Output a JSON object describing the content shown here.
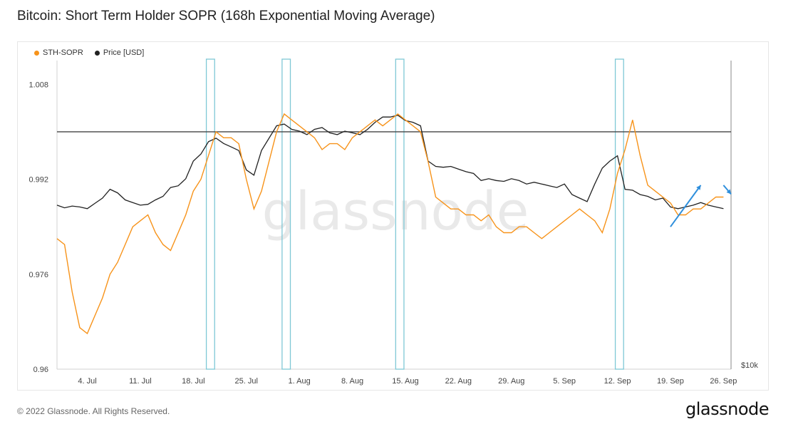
{
  "title": "Bitcoin: Short Term Holder SOPR (168h Exponential Moving Average)",
  "footer": "© 2022 Glassnode. All Rights Reserved.",
  "brand": "glassnode",
  "watermark": "glassnode",
  "colors": {
    "sopr": "#f7931a",
    "price": "#222222",
    "highlight": "#7fc8d6",
    "arrow": "#2f8fdc",
    "baseline": "#444444"
  },
  "chart_data": {
    "type": "line",
    "title": "Bitcoin: Short Term Holder SOPR (168h Exponential Moving Average)",
    "legend": [
      "STH-SOPR",
      "Price [USD]"
    ],
    "legend_position": "top-left",
    "y_ticks": [
      "1.008",
      "0.992",
      "0.976",
      "0.96"
    ],
    "ylim": [
      0.96,
      1.012
    ],
    "y_right_tick": "$10k",
    "x_ticks": [
      "4. Jul",
      "11. Jul",
      "18. Jul",
      "25. Jul",
      "1. Aug",
      "8. Aug",
      "15. Aug",
      "22. Aug",
      "29. Aug",
      "5. Sep",
      "12. Sep",
      "19. Sep",
      "26. Sep"
    ],
    "xlim": [
      "2022-06-30",
      "2022-09-27"
    ],
    "baseline": 1.0,
    "grid": "vertical-none",
    "series": [
      {
        "name": "STH-SOPR",
        "x": [
          "2022-06-30",
          "2022-07-01",
          "2022-07-02",
          "2022-07-03",
          "2022-07-04",
          "2022-07-05",
          "2022-07-06",
          "2022-07-07",
          "2022-07-08",
          "2022-07-09",
          "2022-07-10",
          "2022-07-11",
          "2022-07-12",
          "2022-07-13",
          "2022-07-14",
          "2022-07-15",
          "2022-07-16",
          "2022-07-17",
          "2022-07-18",
          "2022-07-19",
          "2022-07-20",
          "2022-07-21",
          "2022-07-22",
          "2022-07-23",
          "2022-07-24",
          "2022-07-25",
          "2022-07-26",
          "2022-07-27",
          "2022-07-28",
          "2022-07-29",
          "2022-07-30",
          "2022-07-31",
          "2022-08-01",
          "2022-08-02",
          "2022-08-03",
          "2022-08-04",
          "2022-08-05",
          "2022-08-06",
          "2022-08-07",
          "2022-08-08",
          "2022-08-09",
          "2022-08-10",
          "2022-08-11",
          "2022-08-12",
          "2022-08-13",
          "2022-08-14",
          "2022-08-15",
          "2022-08-16",
          "2022-08-17",
          "2022-08-18",
          "2022-08-19",
          "2022-08-20",
          "2022-08-21",
          "2022-08-22",
          "2022-08-23",
          "2022-08-24",
          "2022-08-25",
          "2022-08-26",
          "2022-08-27",
          "2022-08-28",
          "2022-08-29",
          "2022-08-30",
          "2022-08-31",
          "2022-09-01",
          "2022-09-02",
          "2022-09-03",
          "2022-09-04",
          "2022-09-05",
          "2022-09-06",
          "2022-09-07",
          "2022-09-08",
          "2022-09-09",
          "2022-09-10",
          "2022-09-11",
          "2022-09-12",
          "2022-09-13",
          "2022-09-14",
          "2022-09-15",
          "2022-09-16",
          "2022-09-17",
          "2022-09-18",
          "2022-09-19",
          "2022-09-20",
          "2022-09-21",
          "2022-09-22",
          "2022-09-23",
          "2022-09-24",
          "2022-09-25",
          "2022-09-26"
        ],
        "values": [
          0.982,
          0.981,
          0.973,
          0.967,
          0.966,
          0.969,
          0.972,
          0.976,
          0.978,
          0.981,
          0.984,
          0.985,
          0.986,
          0.983,
          0.981,
          0.98,
          0.983,
          0.986,
          0.99,
          0.992,
          0.996,
          1.0,
          0.999,
          0.999,
          0.998,
          0.992,
          0.987,
          0.99,
          0.995,
          1.0,
          1.003,
          1.002,
          1.001,
          1.0,
          0.999,
          0.997,
          0.998,
          0.998,
          0.997,
          0.999,
          1.0,
          1.001,
          1.002,
          1.001,
          1.002,
          1.003,
          1.002,
          1.001,
          1.0,
          0.995,
          0.989,
          0.988,
          0.987,
          0.987,
          0.986,
          0.986,
          0.985,
          0.986,
          0.984,
          0.983,
          0.983,
          0.984,
          0.984,
          0.983,
          0.982,
          0.983,
          0.984,
          0.985,
          0.986,
          0.987,
          0.986,
          0.985,
          0.983,
          0.987,
          0.993,
          0.997,
          1.002,
          0.996,
          0.991,
          0.99,
          0.989,
          0.988,
          0.986,
          0.986,
          0.987,
          0.987,
          0.988,
          0.989,
          0.989
        ]
      },
      {
        "name": "Price [USD]",
        "x": [
          "2022-06-30",
          "2022-07-01",
          "2022-07-02",
          "2022-07-03",
          "2022-07-04",
          "2022-07-05",
          "2022-07-06",
          "2022-07-07",
          "2022-07-08",
          "2022-07-09",
          "2022-07-10",
          "2022-07-11",
          "2022-07-12",
          "2022-07-13",
          "2022-07-14",
          "2022-07-15",
          "2022-07-16",
          "2022-07-17",
          "2022-07-18",
          "2022-07-19",
          "2022-07-20",
          "2022-07-21",
          "2022-07-22",
          "2022-07-23",
          "2022-07-24",
          "2022-07-25",
          "2022-07-26",
          "2022-07-27",
          "2022-07-28",
          "2022-07-29",
          "2022-07-30",
          "2022-07-31",
          "2022-08-01",
          "2022-08-02",
          "2022-08-03",
          "2022-08-04",
          "2022-08-05",
          "2022-08-06",
          "2022-08-07",
          "2022-08-08",
          "2022-08-09",
          "2022-08-10",
          "2022-08-11",
          "2022-08-12",
          "2022-08-13",
          "2022-08-14",
          "2022-08-15",
          "2022-08-16",
          "2022-08-17",
          "2022-08-18",
          "2022-08-19",
          "2022-08-20",
          "2022-08-21",
          "2022-08-22",
          "2022-08-23",
          "2022-08-24",
          "2022-08-25",
          "2022-08-26",
          "2022-08-27",
          "2022-08-28",
          "2022-08-29",
          "2022-08-30",
          "2022-08-31",
          "2022-09-01",
          "2022-09-02",
          "2022-09-03",
          "2022-09-04",
          "2022-09-05",
          "2022-09-06",
          "2022-09-07",
          "2022-09-08",
          "2022-09-09",
          "2022-09-10",
          "2022-09-11",
          "2022-09-12",
          "2022-09-13",
          "2022-09-14",
          "2022-09-15",
          "2022-09-16",
          "2022-09-17",
          "2022-09-18",
          "2022-09-19",
          "2022-09-20",
          "2022-09-21",
          "2022-09-22",
          "2022-09-23",
          "2022-09-24",
          "2022-09-25",
          "2022-09-26"
        ],
        "values": [
          19300,
          19150,
          19250,
          19200,
          19100,
          19400,
          19700,
          20200,
          20000,
          19600,
          19450,
          19300,
          19350,
          19600,
          19800,
          20300,
          20400,
          20800,
          21800,
          22200,
          22900,
          23100,
          22800,
          22600,
          22400,
          21300,
          21000,
          22400,
          23100,
          23800,
          23900,
          23600,
          23500,
          23300,
          23600,
          23700,
          23400,
          23300,
          23500,
          23400,
          23300,
          23600,
          24000,
          24300,
          24300,
          24400,
          24100,
          24000,
          23800,
          21800,
          21500,
          21450,
          21500,
          21350,
          21200,
          21100,
          20700,
          20800,
          20700,
          20650,
          20800,
          20700,
          20500,
          20600,
          20500,
          20400,
          20300,
          20500,
          19900,
          19700,
          19500,
          20500,
          21400,
          21800,
          22100,
          20200,
          20150,
          19900,
          19800,
          19600,
          19700,
          19200,
          19100,
          19200,
          19300,
          19450,
          19300,
          19200,
          19100
        ]
      }
    ],
    "highlights": [
      {
        "start": "2022-07-20",
        "end": "2022-07-21"
      },
      {
        "start": "2022-07-30",
        "end": "2022-07-31"
      },
      {
        "start": "2022-08-14",
        "end": "2022-08-15"
      },
      {
        "start": "2022-09-12",
        "end": "2022-09-13"
      }
    ],
    "annotations": [
      {
        "type": "arrow",
        "from": [
          "2022-09-19",
          0.984
        ],
        "to": [
          "2022-09-23",
          0.991
        ]
      },
      {
        "type": "arrow",
        "from": [
          "2022-09-26",
          0.991
        ],
        "to": [
          "2022-09-27",
          0.9895
        ]
      }
    ]
  }
}
